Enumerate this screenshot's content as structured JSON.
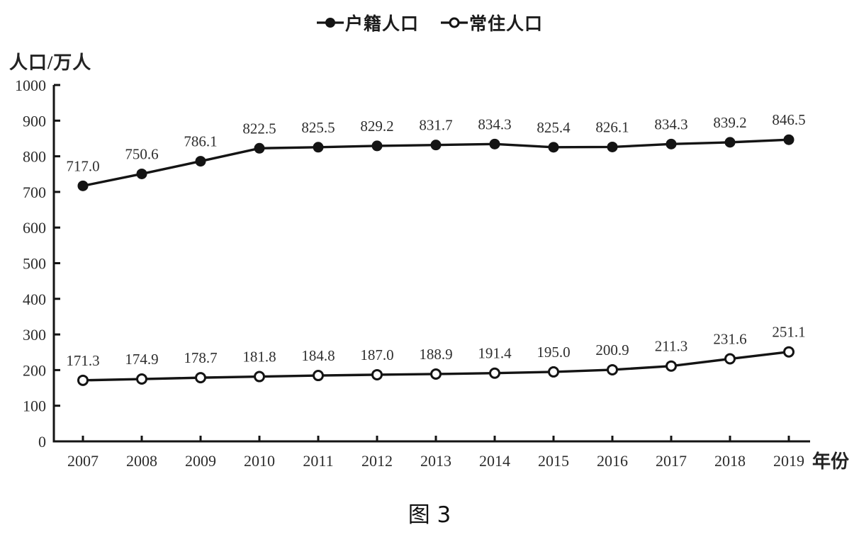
{
  "figure": {
    "y_axis_title": "人口/万人",
    "x_axis_unit": "年份",
    "caption": "图 3",
    "background_color": "#ffffff",
    "line_color": "#141414",
    "text_color": "#2c2c2c"
  },
  "legend": {
    "position": "top-center",
    "items": [
      {
        "label": "户籍人口",
        "marker": "filled-circle"
      },
      {
        "label": "常住人口",
        "marker": "open-circle"
      }
    ]
  },
  "chart_data": {
    "type": "line",
    "x": [
      2007,
      2008,
      2009,
      2010,
      2011,
      2012,
      2013,
      2014,
      2015,
      2016,
      2017,
      2018,
      2019
    ],
    "series": [
      {
        "name": "户籍人口",
        "marker": "filled-circle",
        "values": [
          717.0,
          750.6,
          786.1,
          822.5,
          825.5,
          829.2,
          831.7,
          834.3,
          825.4,
          826.1,
          834.3,
          839.2,
          846.5
        ]
      },
      {
        "name": "常住人口",
        "marker": "open-circle",
        "values": [
          171.3,
          174.9,
          178.7,
          181.8,
          184.8,
          187.0,
          188.9,
          191.4,
          195.0,
          200.9,
          211.3,
          231.6,
          251.1
        ]
      }
    ],
    "title": "",
    "xlabel": "年份",
    "ylabel": "人口/万人",
    "ylim": [
      0,
      1000
    ],
    "y_ticks": [
      0,
      100,
      200,
      300,
      400,
      500,
      600,
      700,
      800,
      900,
      1000
    ],
    "grid": false,
    "data_labels": true,
    "legend_position": "top-center"
  }
}
